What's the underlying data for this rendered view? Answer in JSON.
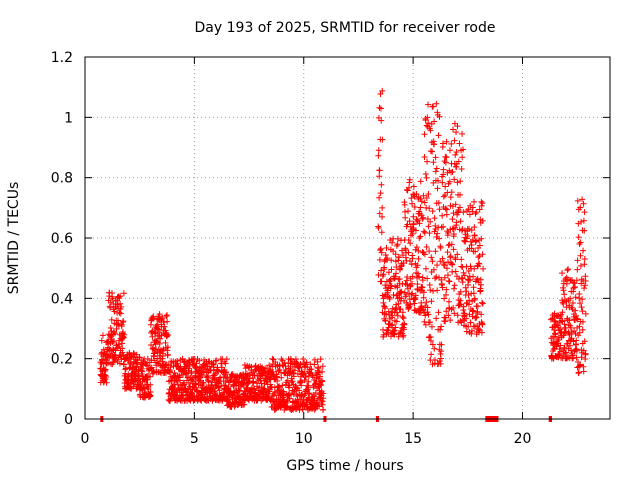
{
  "chart_data": {
    "type": "scatter",
    "title": "Day 193 of 2025, SRMTID for receiver rode",
    "xlabel": "GPS time / hours",
    "ylabel": "SRMTID / TECUs",
    "xlim": [
      0,
      24
    ],
    "ylim": [
      0,
      1.2
    ],
    "xticks": [
      0,
      5,
      10,
      15,
      20
    ],
    "yticks": [
      0,
      0.2,
      0.4,
      0.6,
      0.8,
      1,
      1.2
    ],
    "x_tick_labels": [
      "0",
      "5",
      "10",
      "15",
      "20"
    ],
    "y_tick_labels": [
      "0",
      "0.2",
      "0.4",
      "0.6",
      "0.8",
      "1",
      "1.2"
    ],
    "grid": true,
    "marker": "+",
    "color": "#ff0000",
    "series": [
      {
        "name": "SRMTID",
        "segments": [
          {
            "x_start": 0.7,
            "x_end": 1.0,
            "low": 0.12,
            "high": 0.28
          },
          {
            "x_start": 1.0,
            "x_end": 1.8,
            "low": 0.18,
            "high": 0.42
          },
          {
            "x_start": 1.8,
            "x_end": 2.5,
            "low": 0.1,
            "high": 0.22
          },
          {
            "x_start": 2.5,
            "x_end": 3.0,
            "low": 0.07,
            "high": 0.2
          },
          {
            "x_start": 3.0,
            "x_end": 3.8,
            "low": 0.15,
            "high": 0.35
          },
          {
            "x_start": 3.8,
            "x_end": 6.5,
            "low": 0.06,
            "high": 0.2
          },
          {
            "x_start": 6.5,
            "x_end": 7.3,
            "low": 0.04,
            "high": 0.15
          },
          {
            "x_start": 7.3,
            "x_end": 8.5,
            "low": 0.06,
            "high": 0.18
          },
          {
            "x_start": 8.5,
            "x_end": 10.9,
            "low": 0.03,
            "high": 0.2
          },
          {
            "x_start": 13.4,
            "x_end": 13.6,
            "low": 0.45,
            "high": 1.09
          },
          {
            "x_start": 13.6,
            "x_end": 14.6,
            "low": 0.27,
            "high": 0.6
          },
          {
            "x_start": 14.6,
            "x_end": 15.5,
            "low": 0.35,
            "high": 0.8
          },
          {
            "x_start": 15.5,
            "x_end": 16.3,
            "low": 0.18,
            "high": 1.06
          },
          {
            "x_start": 16.3,
            "x_end": 17.3,
            "low": 0.32,
            "high": 0.98
          },
          {
            "x_start": 17.3,
            "x_end": 18.2,
            "low": 0.28,
            "high": 0.72
          },
          {
            "x_start": 21.3,
            "x_end": 21.8,
            "low": 0.2,
            "high": 0.35
          },
          {
            "x_start": 21.8,
            "x_end": 22.5,
            "low": 0.2,
            "high": 0.5
          },
          {
            "x_start": 22.5,
            "x_end": 22.9,
            "low": 0.15,
            "high": 0.74
          }
        ]
      }
    ],
    "gap_markers_at_zero": [
      {
        "x_start": 0.7,
        "x_end": 0.8
      },
      {
        "x_start": 10.9,
        "x_end": 10.95
      },
      {
        "x_start": 13.3,
        "x_end": 13.4
      },
      {
        "x_start": 18.3,
        "x_end": 18.9
      },
      {
        "x_start": 21.2,
        "x_end": 21.35
      }
    ]
  }
}
